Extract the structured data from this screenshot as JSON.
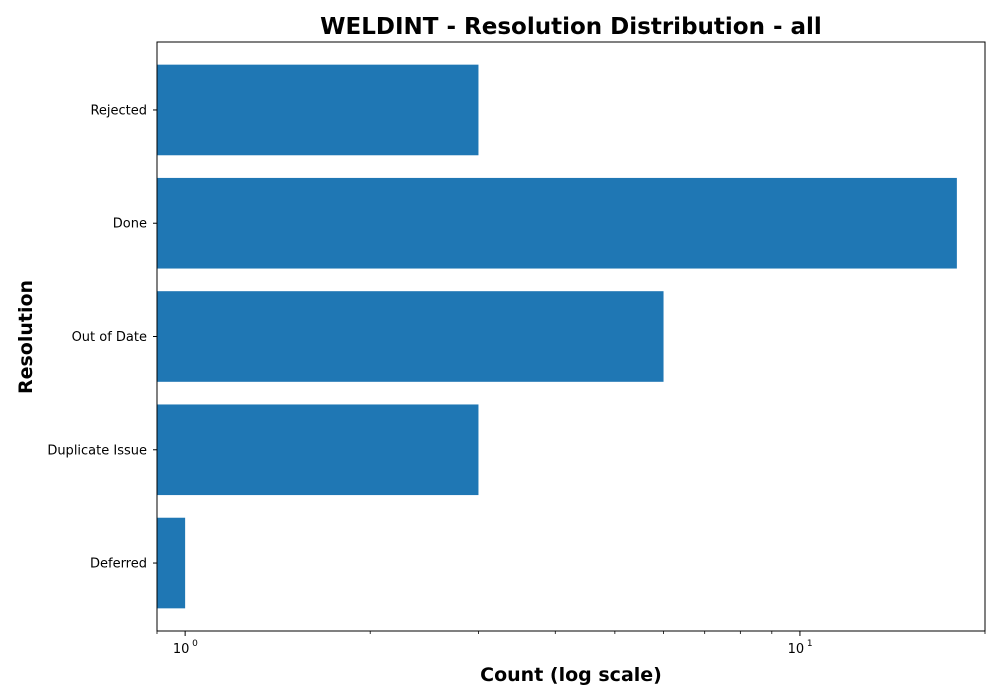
{
  "chart_data": {
    "type": "bar",
    "orientation": "horizontal",
    "title": "WELDINT - Resolution Distribution - all",
    "xlabel": "Count (log scale)",
    "ylabel": "Resolution",
    "x_scale": "log",
    "xlim": [
      0.9,
      20
    ],
    "categories": [
      "Deferred",
      "Duplicate Issue",
      "Out of Date",
      "Done",
      "Rejected"
    ],
    "values": [
      1,
      3,
      6,
      18,
      3
    ],
    "x_major_ticks": [
      {
        "base": "10",
        "exp": "0",
        "value": 1
      },
      {
        "base": "10",
        "exp": "1",
        "value": 10
      }
    ],
    "bar_color": "#1f77b4",
    "grid": false,
    "legend": "none"
  }
}
